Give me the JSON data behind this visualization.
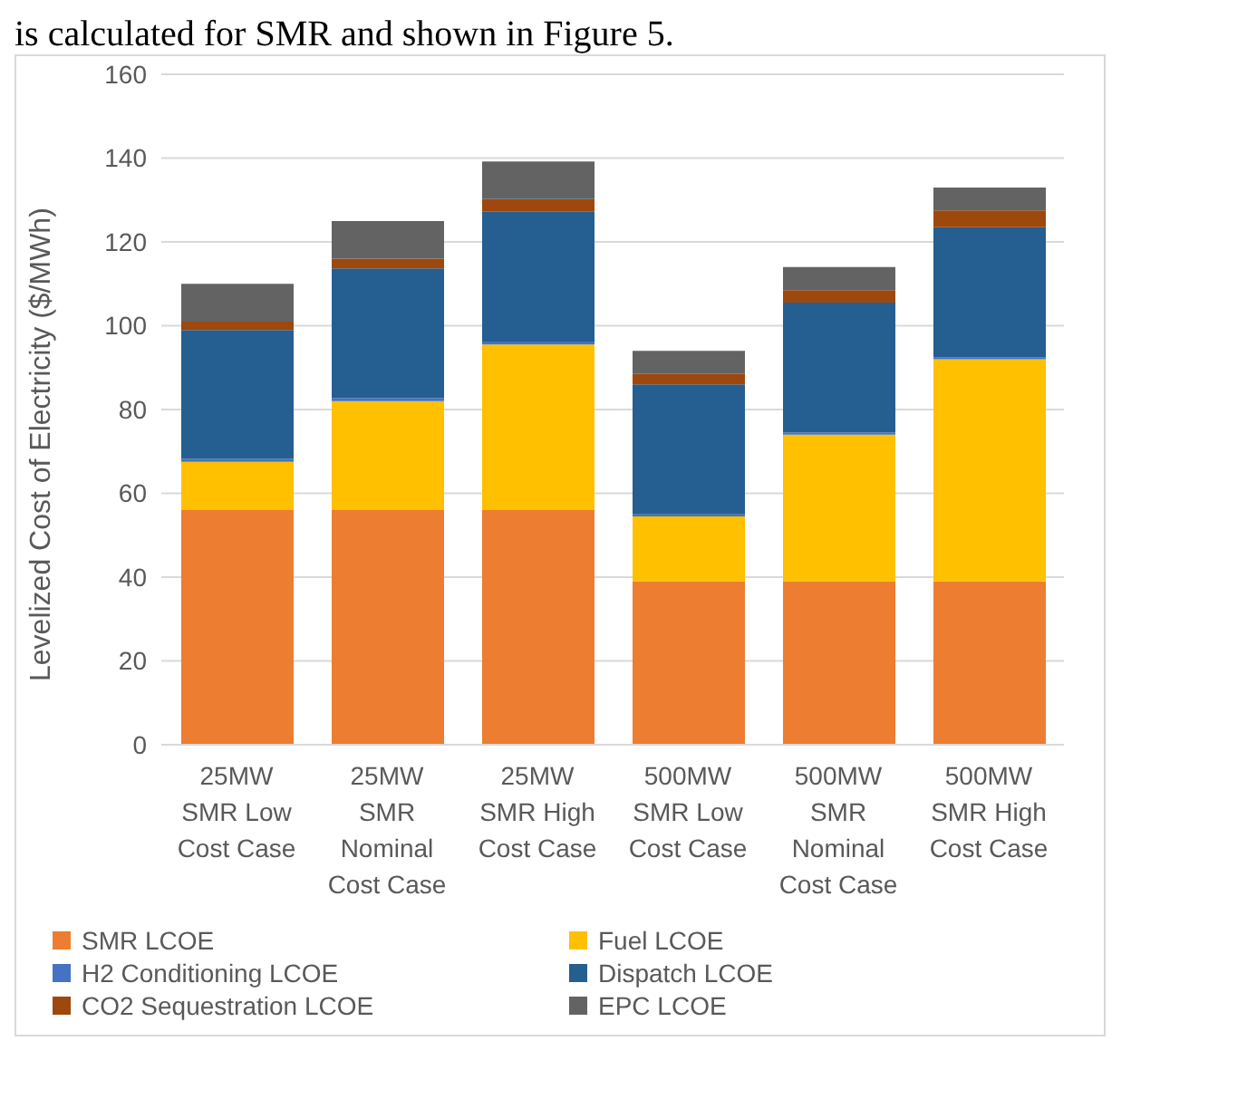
{
  "chart_data": {
    "type": "bar",
    "stacked": true,
    "ylabel": "Levelized Cost of Electricity ($/MWh)",
    "annotations": [
      "is calculated for SMR and shown in Figure 5."
    ],
    "categories": [
      "25MW SMR Low Cost Case",
      "25MW SMR Nominal Cost Case",
      "25MW SMR High Cost Case",
      "500MW SMR Low Cost Case",
      "500MW SMR Nominal Cost Case",
      "500MW SMR High Cost Case"
    ],
    "series": [
      {
        "name": "SMR LCOE",
        "color": "#ed7d31",
        "values": [
          56,
          56,
          56,
          39,
          39,
          39
        ]
      },
      {
        "name": "Fuel LCOE",
        "color": "#ffc000",
        "values": [
          11.5,
          26,
          39.5,
          15.5,
          35,
          53
        ]
      },
      {
        "name": "H2 Conditioning LCOE",
        "color": "#4472c4",
        "values": [
          0.7,
          0.7,
          0.7,
          0.5,
          0.5,
          0.5
        ]
      },
      {
        "name": "Dispatch LCOE",
        "color": "#255e91",
        "values": [
          30.8,
          31,
          31,
          31,
          31,
          31
        ]
      },
      {
        "name": "CO2 Sequestration LCOE",
        "color": "#9e480e",
        "values": [
          2,
          2.3,
          3,
          2.5,
          3,
          4
        ]
      },
      {
        "name": "EPC LCOE",
        "color": "#636363",
        "values": [
          9,
          9,
          9,
          5.5,
          5.5,
          5.5
        ]
      }
    ],
    "ylim": [
      0,
      160
    ],
    "yticks": [
      0,
      20,
      40,
      60,
      80,
      100,
      120,
      140,
      160
    ],
    "grid": "y",
    "legend": "bottom"
  }
}
